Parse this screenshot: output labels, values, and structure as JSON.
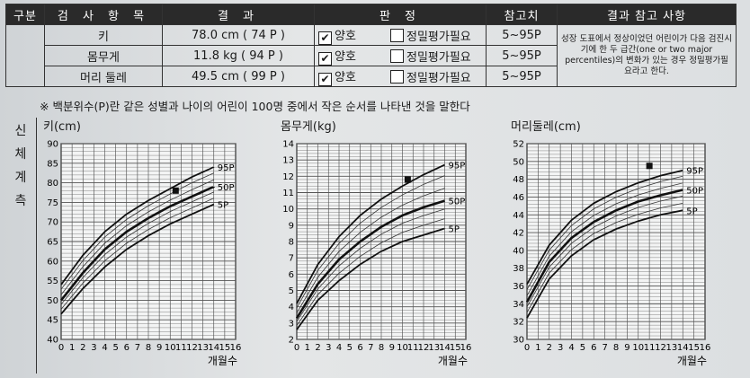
{
  "header": {
    "section": "구분",
    "item": "검 사 항 목",
    "result": "결 과",
    "judgment": "판 정",
    "reference": "참고치",
    "remarks": "결과 참고 사항"
  },
  "rows": [
    {
      "item": "키",
      "value": "78.0 cm ( 74 P )",
      "normal": "양호",
      "refer": "정밀평가필요",
      "reference": "5~95P"
    },
    {
      "item": "몸무게",
      "value": "11.8 kg ( 94 P )",
      "normal": "양호",
      "refer": "정밀평가필요",
      "reference": "5~95P"
    },
    {
      "item": "머리 둘레",
      "value": "49.5 cm ( 99 P )",
      "normal": "양호",
      "refer": "정밀평가필요",
      "reference": "5~95P"
    }
  ],
  "remarks_text": "성장 도표에서 정상이었던 어린이가 다음 검진시기에 한 두 급간(one or two major percentiles)의 변화가 있는 경우 정밀평가필요라고 한다.",
  "footnote": "※ 백분위수(P)란 같은 성별과 나이의 어린이 100명 중에서 작은 순서를 나타낸 것을 말한다",
  "side_label": [
    "신",
    "체",
    "계",
    "측"
  ],
  "chart_data": [
    {
      "type": "line",
      "title": "키(cm)",
      "xlabel": "개월수",
      "xlim": [
        0,
        16
      ],
      "ylim": [
        40,
        90
      ],
      "ytick_step": 5,
      "series_labels": [
        "95P",
        "50P",
        "5P"
      ],
      "series": [
        {
          "name": "95P",
          "x": [
            0,
            2,
            4,
            6,
            8,
            10,
            12,
            14
          ],
          "values": [
            54,
            61.5,
            67.5,
            72,
            75.5,
            78.5,
            81.5,
            84
          ]
        },
        {
          "name": "50P",
          "x": [
            0,
            2,
            4,
            6,
            8,
            10,
            12,
            14
          ],
          "values": [
            50,
            57,
            63,
            67.5,
            71,
            74,
            76.5,
            79
          ]
        },
        {
          "name": "5P",
          "x": [
            0,
            2,
            4,
            6,
            8,
            10,
            12,
            14
          ],
          "values": [
            46.5,
            53,
            58.5,
            63,
            66.5,
            69.5,
            72,
            74.5
          ]
        }
      ],
      "point": {
        "x": 10.5,
        "y": 78
      }
    },
    {
      "type": "line",
      "title": "몸무게(kg)",
      "xlabel": "개월수",
      "xlim": [
        0,
        16
      ],
      "ylim": [
        2,
        14
      ],
      "ytick_step": 1,
      "series_labels": [
        "95P",
        "50P",
        "5P"
      ],
      "series": [
        {
          "name": "95P",
          "x": [
            0,
            2,
            4,
            6,
            8,
            10,
            12,
            14
          ],
          "values": [
            4.2,
            6.6,
            8.3,
            9.6,
            10.6,
            11.4,
            12.1,
            12.7
          ]
        },
        {
          "name": "50P",
          "x": [
            0,
            2,
            4,
            6,
            8,
            10,
            12,
            14
          ],
          "values": [
            3.3,
            5.4,
            6.9,
            8.0,
            8.9,
            9.6,
            10.1,
            10.5
          ]
        },
        {
          "name": "5P",
          "x": [
            0,
            2,
            4,
            6,
            8,
            10,
            12,
            14
          ],
          "values": [
            2.6,
            4.4,
            5.6,
            6.6,
            7.4,
            8.0,
            8.4,
            8.8
          ]
        }
      ],
      "point": {
        "x": 10.5,
        "y": 11.8
      }
    },
    {
      "type": "line",
      "title": "머리둘레(cm)",
      "xlabel": "개월수",
      "xlim": [
        0,
        16
      ],
      "ylim": [
        30,
        52
      ],
      "ytick_step": 2,
      "series_labels": [
        "95P",
        "50P",
        "5P"
      ],
      "series": [
        {
          "name": "95P",
          "x": [
            0,
            2,
            4,
            6,
            8,
            10,
            12,
            14
          ],
          "values": [
            36.2,
            40.6,
            43.4,
            45.3,
            46.6,
            47.6,
            48.4,
            49.0
          ]
        },
        {
          "name": "50P",
          "x": [
            0,
            2,
            4,
            6,
            8,
            10,
            12,
            14
          ],
          "values": [
            34.2,
            38.7,
            41.4,
            43.2,
            44.5,
            45.5,
            46.2,
            46.8
          ]
        },
        {
          "name": "5P",
          "x": [
            0,
            2,
            4,
            6,
            8,
            10,
            12,
            14
          ],
          "values": [
            32.4,
            36.8,
            39.4,
            41.2,
            42.4,
            43.3,
            44.0,
            44.5
          ]
        }
      ],
      "point": {
        "x": 11,
        "y": 49.5
      }
    }
  ]
}
